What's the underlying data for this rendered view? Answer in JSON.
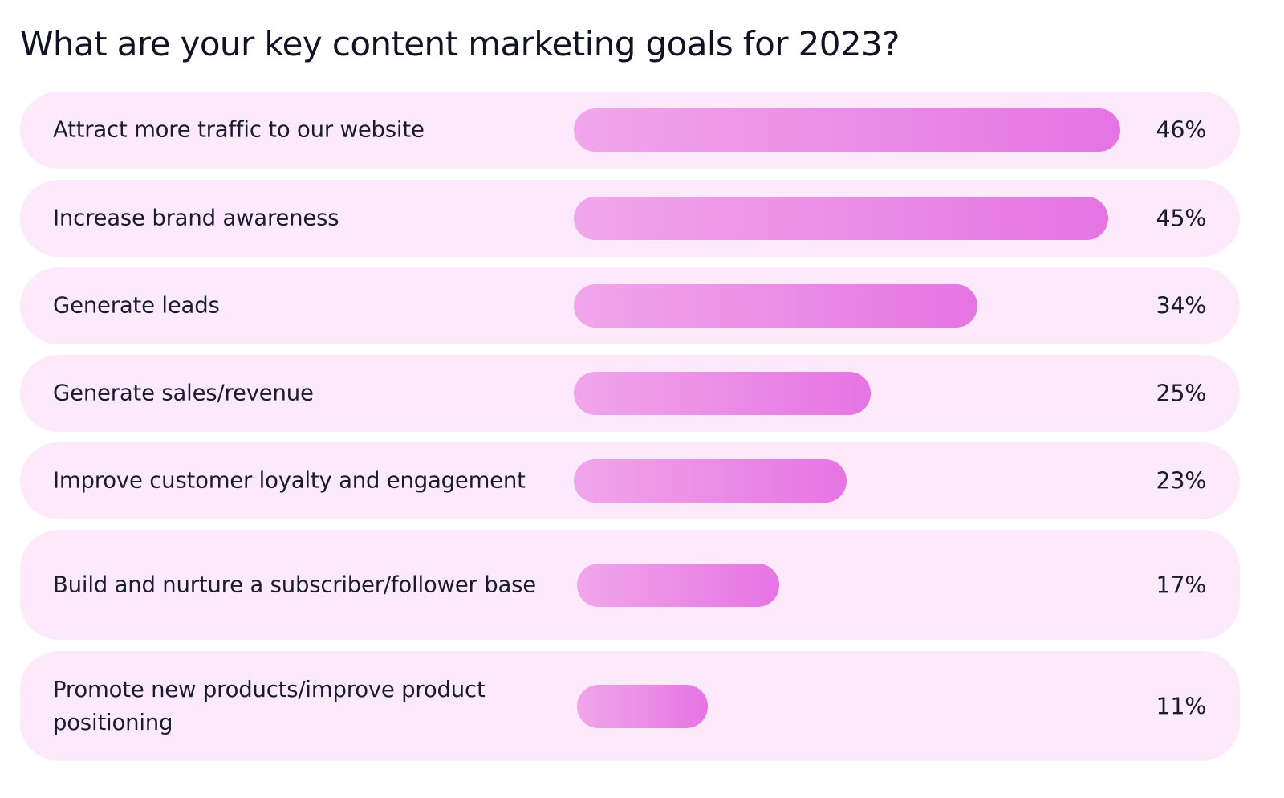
{
  "chart_data": {
    "type": "bar",
    "orientation": "horizontal",
    "title": "What are your key content marketing goals for 2023?",
    "categories": [
      "Attract more traffic to our website",
      "Increase brand awareness",
      "Generate leads",
      "Generate sales/revenue",
      "Improve customer loyalty and engagement",
      "Build and nurture a subscriber/follower base",
      "Promote new products/improve product positioning"
    ],
    "values": [
      46,
      45,
      34,
      25,
      23,
      17,
      11
    ],
    "value_labels": [
      "46%",
      "45%",
      "34%",
      "25%",
      "23%",
      "17%",
      "11%"
    ],
    "unit": "%",
    "colors": {
      "row_background": "#fde9fc",
      "bar_start": "#f0a6ea",
      "bar_end": "#e674e3"
    }
  }
}
